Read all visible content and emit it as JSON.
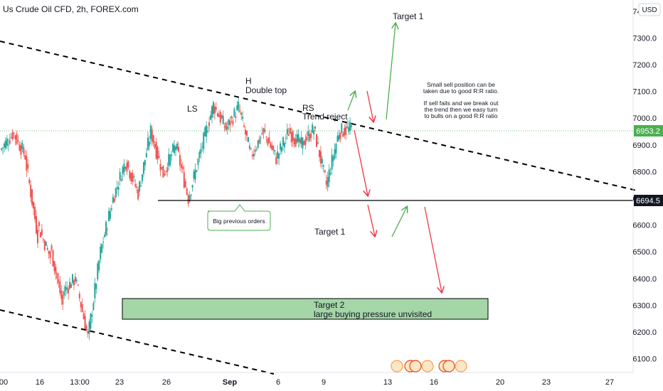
{
  "header": {
    "title": "Us Crude Oil CFD, 2h, FOREX.com",
    "currency": "USD"
  },
  "price_tags": {
    "current": "6953.2",
    "support": "6694.5"
  },
  "annotations": {
    "ls": "LS",
    "h": "H",
    "double_top": "Double top",
    "rs": "RS",
    "trend_reject": "Trend reject",
    "target1_top": "Target 1",
    "target1_mid": "Target 1",
    "big_orders": "Big previous orders",
    "target2_line1": "Target 2",
    "target2_line2": "large buying pressure unvisited",
    "note": [
      "Small sell position can be",
      "taken due to good R:R ratio.",
      "",
      "If sell fails and we break out",
      "the trend then we easy turn",
      "to bulls on a good R:R ratio"
    ]
  },
  "colors": {
    "up": "#26a69a",
    "down": "#ef5350",
    "arrow_up": "#4caf50",
    "arrow_down": "#f23645",
    "zone_fill": "#a5d6a7",
    "current_tag": "#4caf50",
    "support_tag": "#131722"
  },
  "chart_data": {
    "type": "candlestick",
    "title": "Us Crude Oil CFD, 2h, FOREX.com",
    "ylim": [
      6040,
      7440
    ],
    "y_ticks": [
      6100,
      6200,
      6300,
      6400,
      6500,
      6600,
      6700,
      6800,
      6900,
      7000,
      7100,
      7200,
      7300,
      7400
    ],
    "x_tick_labels": [
      "00",
      "16",
      "13:00",
      "23",
      "26",
      "Sep",
      "6",
      "9",
      "13",
      "16",
      "20",
      "23",
      "27"
    ],
    "current_price": 6953.2,
    "support_level": 6694.5,
    "price_path": [
      [
        6880,
        6940
      ],
      [
        6950,
        6860
      ],
      [
        6850,
        6560
      ],
      [
        6600,
        6480
      ],
      [
        6520,
        6300
      ],
      [
        6350,
        6400
      ],
      [
        6400,
        6180
      ],
      [
        6180,
        6500
      ],
      [
        6500,
        6700
      ],
      [
        6700,
        6840
      ],
      [
        6840,
        6720
      ],
      [
        6720,
        6950
      ],
      [
        6950,
        6790
      ],
      [
        6790,
        6900
      ],
      [
        6900,
        6700
      ],
      [
        6700,
        6880
      ],
      [
        6880,
        7050
      ],
      [
        7050,
        6960
      ],
      [
        6960,
        7040
      ],
      [
        7040,
        6860
      ],
      [
        6860,
        6950
      ],
      [
        6950,
        6850
      ],
      [
        6850,
        6950
      ],
      [
        6950,
        6900
      ],
      [
        6900,
        6960
      ],
      [
        6960,
        6750
      ],
      [
        6750,
        6950
      ],
      [
        6950,
        6960
      ]
    ],
    "target2_zone": [
      6250,
      6330
    ],
    "series": []
  }
}
